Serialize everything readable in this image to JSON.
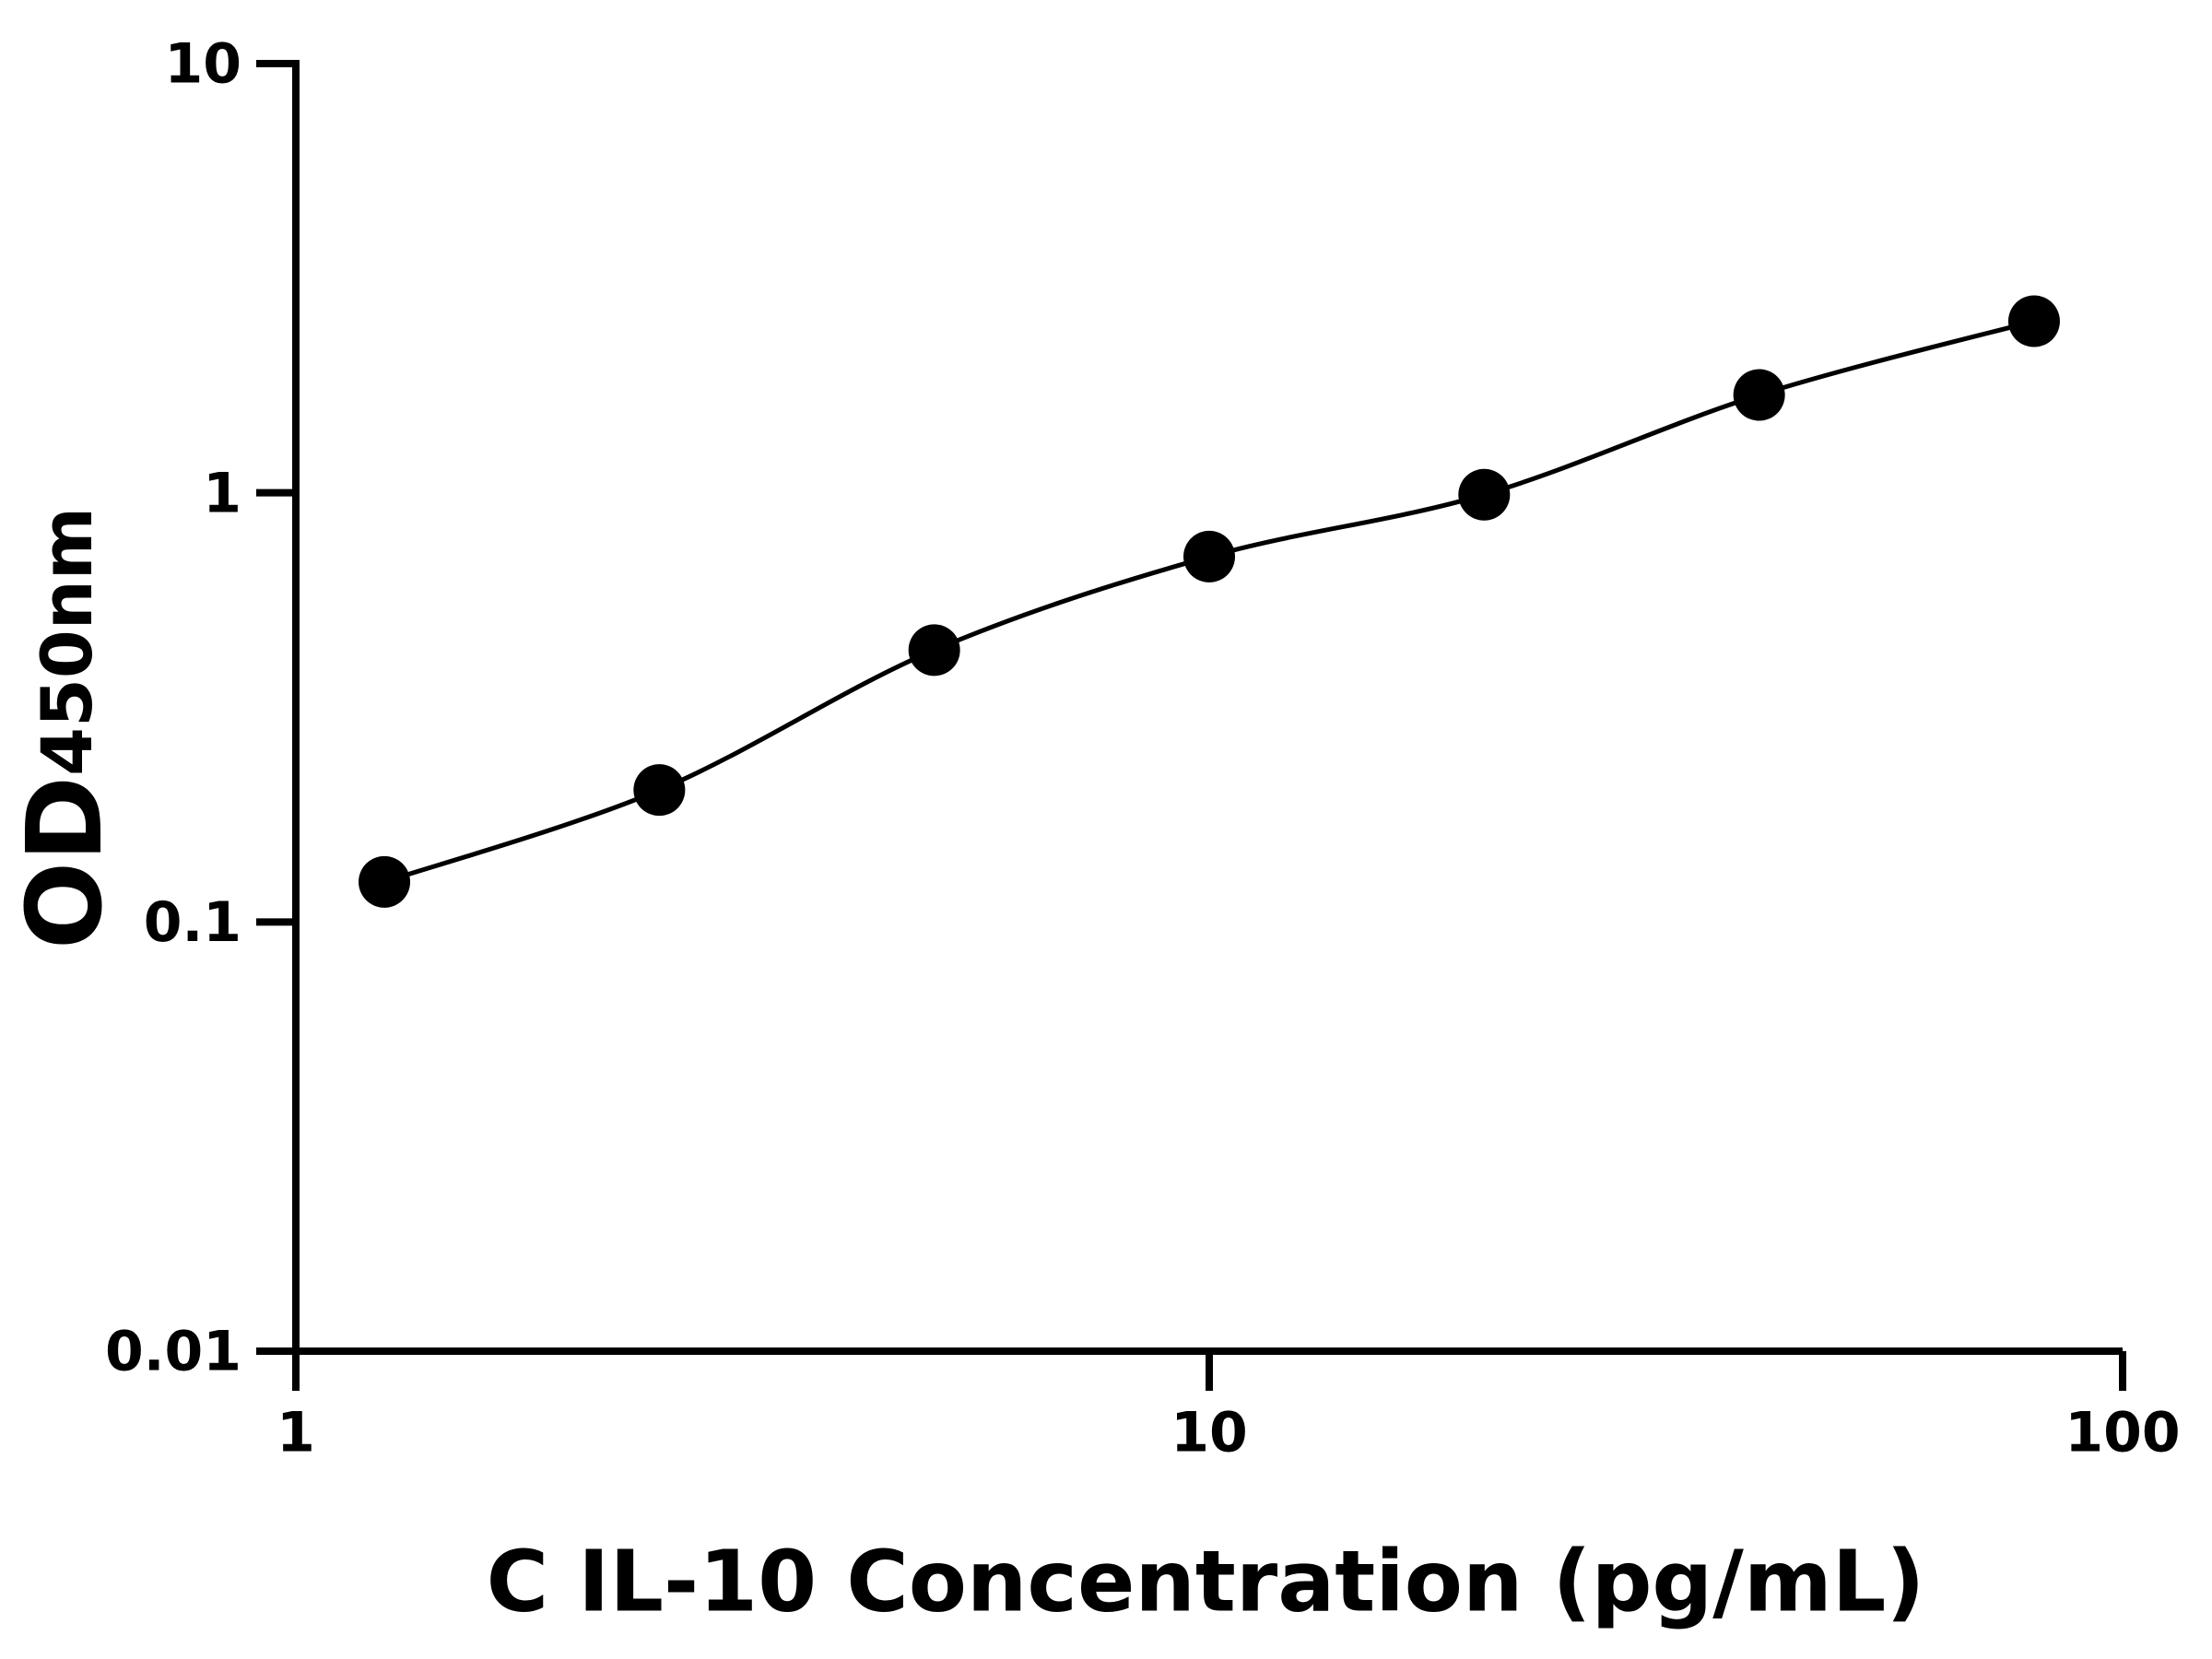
{
  "chart_data": {
    "type": "scatter",
    "x_label": "C IL-10 Concentration (pg/mL)",
    "y_label": {
      "main": "OD",
      "sub": "450nm"
    },
    "x": [
      1.25,
      2.5,
      5,
      10,
      20,
      40,
      80
    ],
    "values": [
      0.124,
      0.203,
      0.43,
      0.71,
      0.99,
      1.69,
      2.51
    ],
    "color": "#000000",
    "fit_line": true,
    "x_log": true,
    "y_log": true,
    "xlim": [
      1,
      100
    ],
    "xticks": [
      1,
      10,
      100
    ],
    "ylim": [
      0.01,
      10
    ],
    "yticks": [
      0.01,
      0.1,
      1,
      10
    ]
  }
}
